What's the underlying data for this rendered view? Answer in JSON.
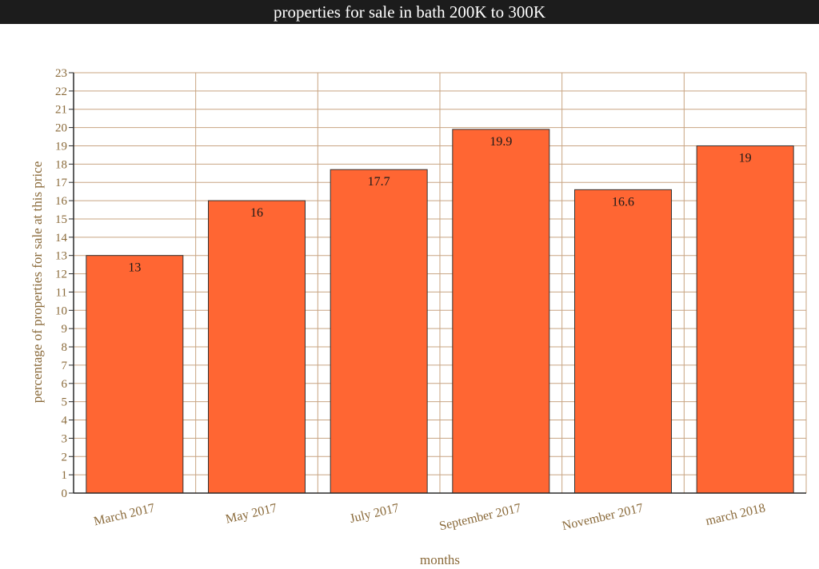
{
  "chart_data": {
    "type": "bar",
    "title": "properties for sale in bath 200K to 300K",
    "xlabel": "months",
    "ylabel": "percentage of properties for sale at this price",
    "categories": [
      "March 2017",
      "May 2017",
      "July 2017",
      "September 2017",
      "November 2017",
      "march 2018"
    ],
    "values": [
      13,
      16,
      17.7,
      19.9,
      16.6,
      19
    ],
    "value_labels": [
      "13",
      "16",
      "17.7",
      "19.9",
      "16.6",
      "19"
    ],
    "ylim": [
      0,
      23
    ],
    "ytick_step": 1,
    "grid": true,
    "colors": {
      "bar": "#ff6633",
      "grid": "#c8a482",
      "axis": "#2a2a2a",
      "text": "#8a6a3a",
      "title_bg": "#1c1c1c"
    }
  }
}
